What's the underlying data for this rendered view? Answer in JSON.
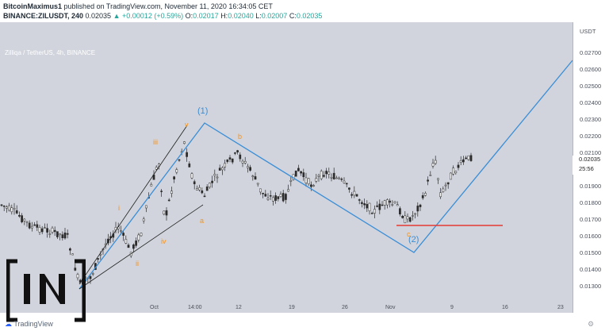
{
  "header": {
    "author": "BitcoinMaximus1",
    "published_text": "published on TradingView.com, November 11, 2020 16:34:05 CET",
    "symbol": "BINANCE:ZILUSDT, 240",
    "last": "0.02035",
    "change": "+0.00012 (+0.59%)",
    "o_label": "O:",
    "o_value": "0.02017",
    "h_label": "H:",
    "h_value": "0.02040",
    "l_label": "L:",
    "l_value": "0.02007",
    "c_label": "C:",
    "c_value": "0.02035"
  },
  "chart": {
    "title": "Zilliqa / TetherUS, 4h, BINANCE",
    "currency": "USDT",
    "price_label": "0.02035",
    "countdown": "25:56",
    "y_ticks": [
      "0.02700",
      "0.02600",
      "0.02500",
      "0.02400",
      "0.02300",
      "0.02200",
      "0.02100",
      "0.01900",
      "0.01800",
      "0.01700",
      "0.01600",
      "0.01500",
      "0.01400",
      "0.01300"
    ],
    "x_ticks": [
      "Oct",
      "14:00",
      "12",
      "19",
      "26",
      "Nov",
      "9",
      "16",
      "23"
    ],
    "wave_labels": {
      "w1": "(1)",
      "w2": "(2)",
      "i": "i",
      "ii": "ii",
      "iii": "iii",
      "iv": "iv",
      "v": "v",
      "a": "a",
      "b": "b",
      "c": "c"
    },
    "colors": {
      "bg": "#d1d4dc",
      "wave_line": "#3a8ed8",
      "support": "#e53935",
      "candles": "#2b2b2b",
      "orange": "#f7931a"
    }
  },
  "footer": {
    "brand": "TradingView",
    "watermark": "IN"
  }
}
